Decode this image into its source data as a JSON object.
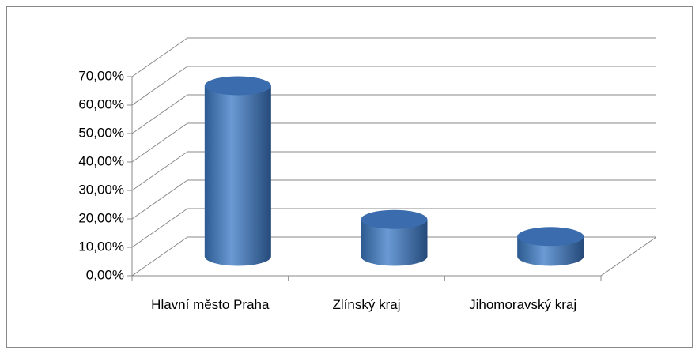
{
  "chart_data": {
    "type": "bar3d",
    "categories": [
      "Hlavní město Praha",
      "Zlínský kraj",
      "Jihomoravský kraj"
    ],
    "values": [
      60,
      13,
      7
    ],
    "color": "#4f81bd",
    "ylim": [
      0,
      70
    ],
    "yticks": [
      {
        "value": 0,
        "label": "0,00%"
      },
      {
        "value": 10,
        "label": "10,00%"
      },
      {
        "value": 20,
        "label": "20,00%"
      },
      {
        "value": 30,
        "label": "30,00%"
      },
      {
        "value": 40,
        "label": "40,00%"
      },
      {
        "value": 50,
        "label": "50,00%"
      },
      {
        "value": 60,
        "label": "60,00%"
      },
      {
        "value": 70,
        "label": "70,00%"
      }
    ],
    "grid": true
  }
}
